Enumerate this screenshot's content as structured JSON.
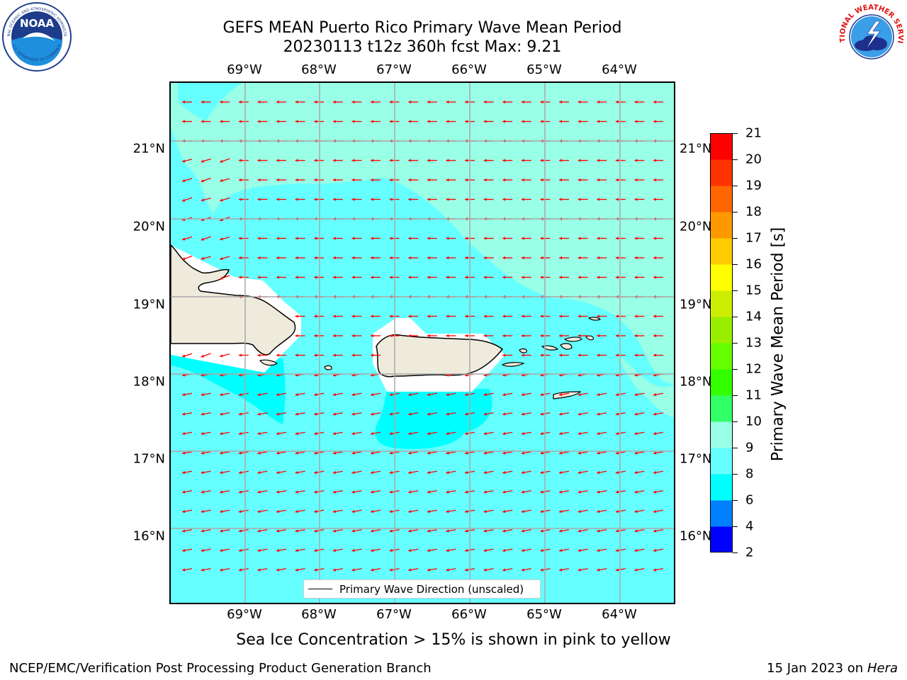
{
  "header": {
    "title_line1": "GEFS MEAN Puerto Rico Primary Wave Mean Period",
    "title_line2": "20230113 t12z 360h fcst   Max: 9.21"
  },
  "map": {
    "lon_labels": [
      "69°W",
      "68°W",
      "67°W",
      "66°W",
      "65°W",
      "64°W"
    ],
    "lat_labels": [
      "21°N",
      "20°N",
      "19°N",
      "18°N",
      "17°N",
      "16°N"
    ],
    "legend_label": "Primary Wave Direction (unscaled)",
    "colors": {
      "water_8_9": "#66ffff",
      "water_9_10": "#99ffe6",
      "water_6_8": "#00ffff",
      "land": "#efebdc",
      "arrows": "#ff0000"
    }
  },
  "colorbar": {
    "label": "Primary Wave Mean Period [s]",
    "ticks": [
      "2",
      "4",
      "6",
      "8",
      "9",
      "10",
      "11",
      "12",
      "13",
      "14",
      "15",
      "16",
      "17",
      "18",
      "19",
      "20",
      "21"
    ],
    "bands": [
      "#0000ff",
      "#0080ff",
      "#00ffff",
      "#66ffff",
      "#99ffe6",
      "#33ff66",
      "#33ff00",
      "#66ff00",
      "#99ee00",
      "#ccee00",
      "#ffff00",
      "#ffcc00",
      "#ff9900",
      "#ff6600",
      "#ff3300",
      "#ff0000"
    ]
  },
  "footnote": "Sea Ice Concentration > 15% is shown in pink to yellow",
  "footer": {
    "left": "NCEP/EMC/Verification Post Processing Product Generation Branch",
    "right_date": "15 Jan 2023 on",
    "right_host": "Hera"
  },
  "logos": {
    "noaa_text": "NOAA",
    "noaa_ring": "NATIONAL OCEANIC AND ATMOSPHERIC ADMINISTRATION",
    "noaa_ring_bottom": "U.S. DEPARTMENT OF COMMERCE",
    "nws_ring": "NATIONAL WEATHER SERVICE"
  }
}
